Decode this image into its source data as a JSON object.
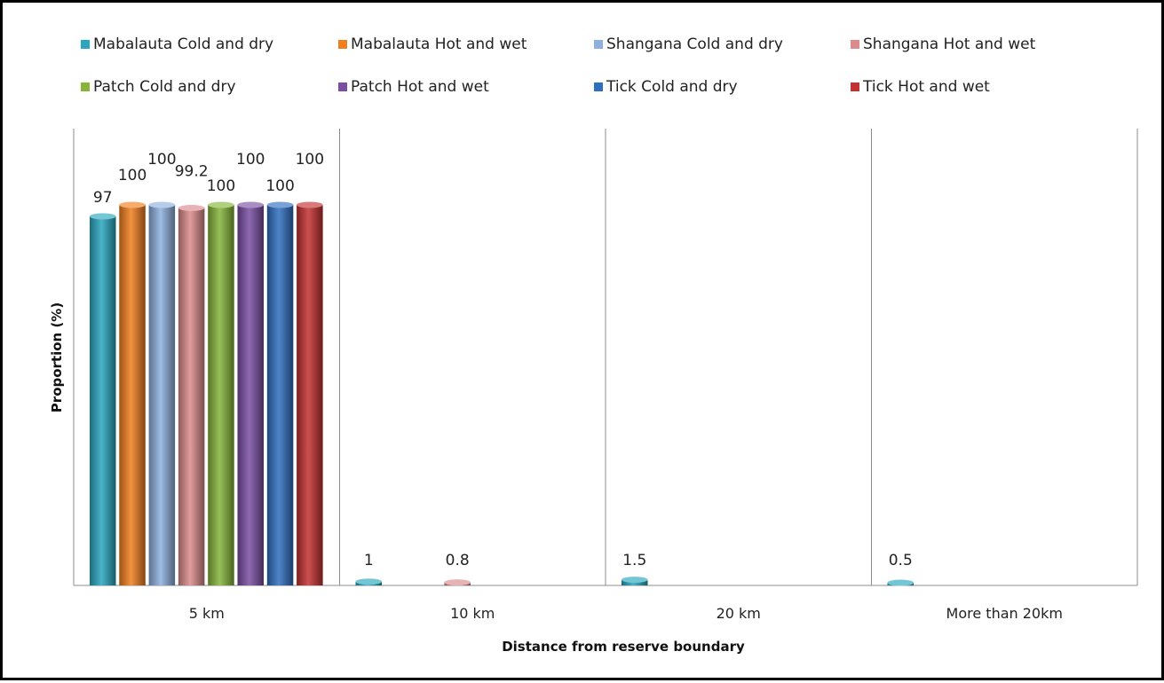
{
  "chart_data": {
    "type": "bar",
    "title": "",
    "xlabel": "Distance from reserve boundary",
    "ylabel": "Proportion (%)",
    "ylim": [
      0,
      100
    ],
    "grid": false,
    "legend_position": "top",
    "categories": [
      "5 km",
      "10 km",
      "20 km",
      "More than 20km"
    ],
    "series": [
      {
        "name": "Mabalauta Cold and dry",
        "color": "#2aa7bf",
        "values": [
          97,
          1,
          1.5,
          0.5
        ],
        "labels": [
          "97",
          "1",
          "1.5",
          "0.5"
        ]
      },
      {
        "name": "Mabalauta Hot and wet",
        "color": "#f07f1f",
        "values": [
          100,
          0,
          0,
          0
        ],
        "labels": [
          "100",
          "",
          "",
          ""
        ]
      },
      {
        "name": "Shangana Cold and dry",
        "color": "#8eb0de",
        "values": [
          100,
          0,
          0,
          0
        ],
        "labels": [
          "100",
          "",
          "",
          ""
        ]
      },
      {
        "name": "Shangana Hot and wet",
        "color": "#dc8a8c",
        "values": [
          99.2,
          0.8,
          0,
          0
        ],
        "labels": [
          "99.2",
          "0.8",
          "",
          ""
        ]
      },
      {
        "name": "Patch Cold and dry",
        "color": "#86b53a",
        "values": [
          100,
          0,
          0,
          0
        ],
        "labels": [
          "100",
          "",
          "",
          ""
        ]
      },
      {
        "name": "Patch Hot and wet",
        "color": "#7a4fa3",
        "values": [
          100,
          0,
          0,
          0
        ],
        "labels": [
          "100",
          "",
          "",
          ""
        ]
      },
      {
        "name": "Tick Cold and dry",
        "color": "#2f6fc0",
        "values": [
          100,
          0,
          0,
          0
        ],
        "labels": [
          "100",
          "",
          "",
          ""
        ]
      },
      {
        "name": "Tick Hot and wet",
        "color": "#c43131",
        "values": [
          100,
          0,
          0,
          0
        ],
        "labels": [
          "100",
          "",
          "",
          ""
        ]
      }
    ]
  }
}
